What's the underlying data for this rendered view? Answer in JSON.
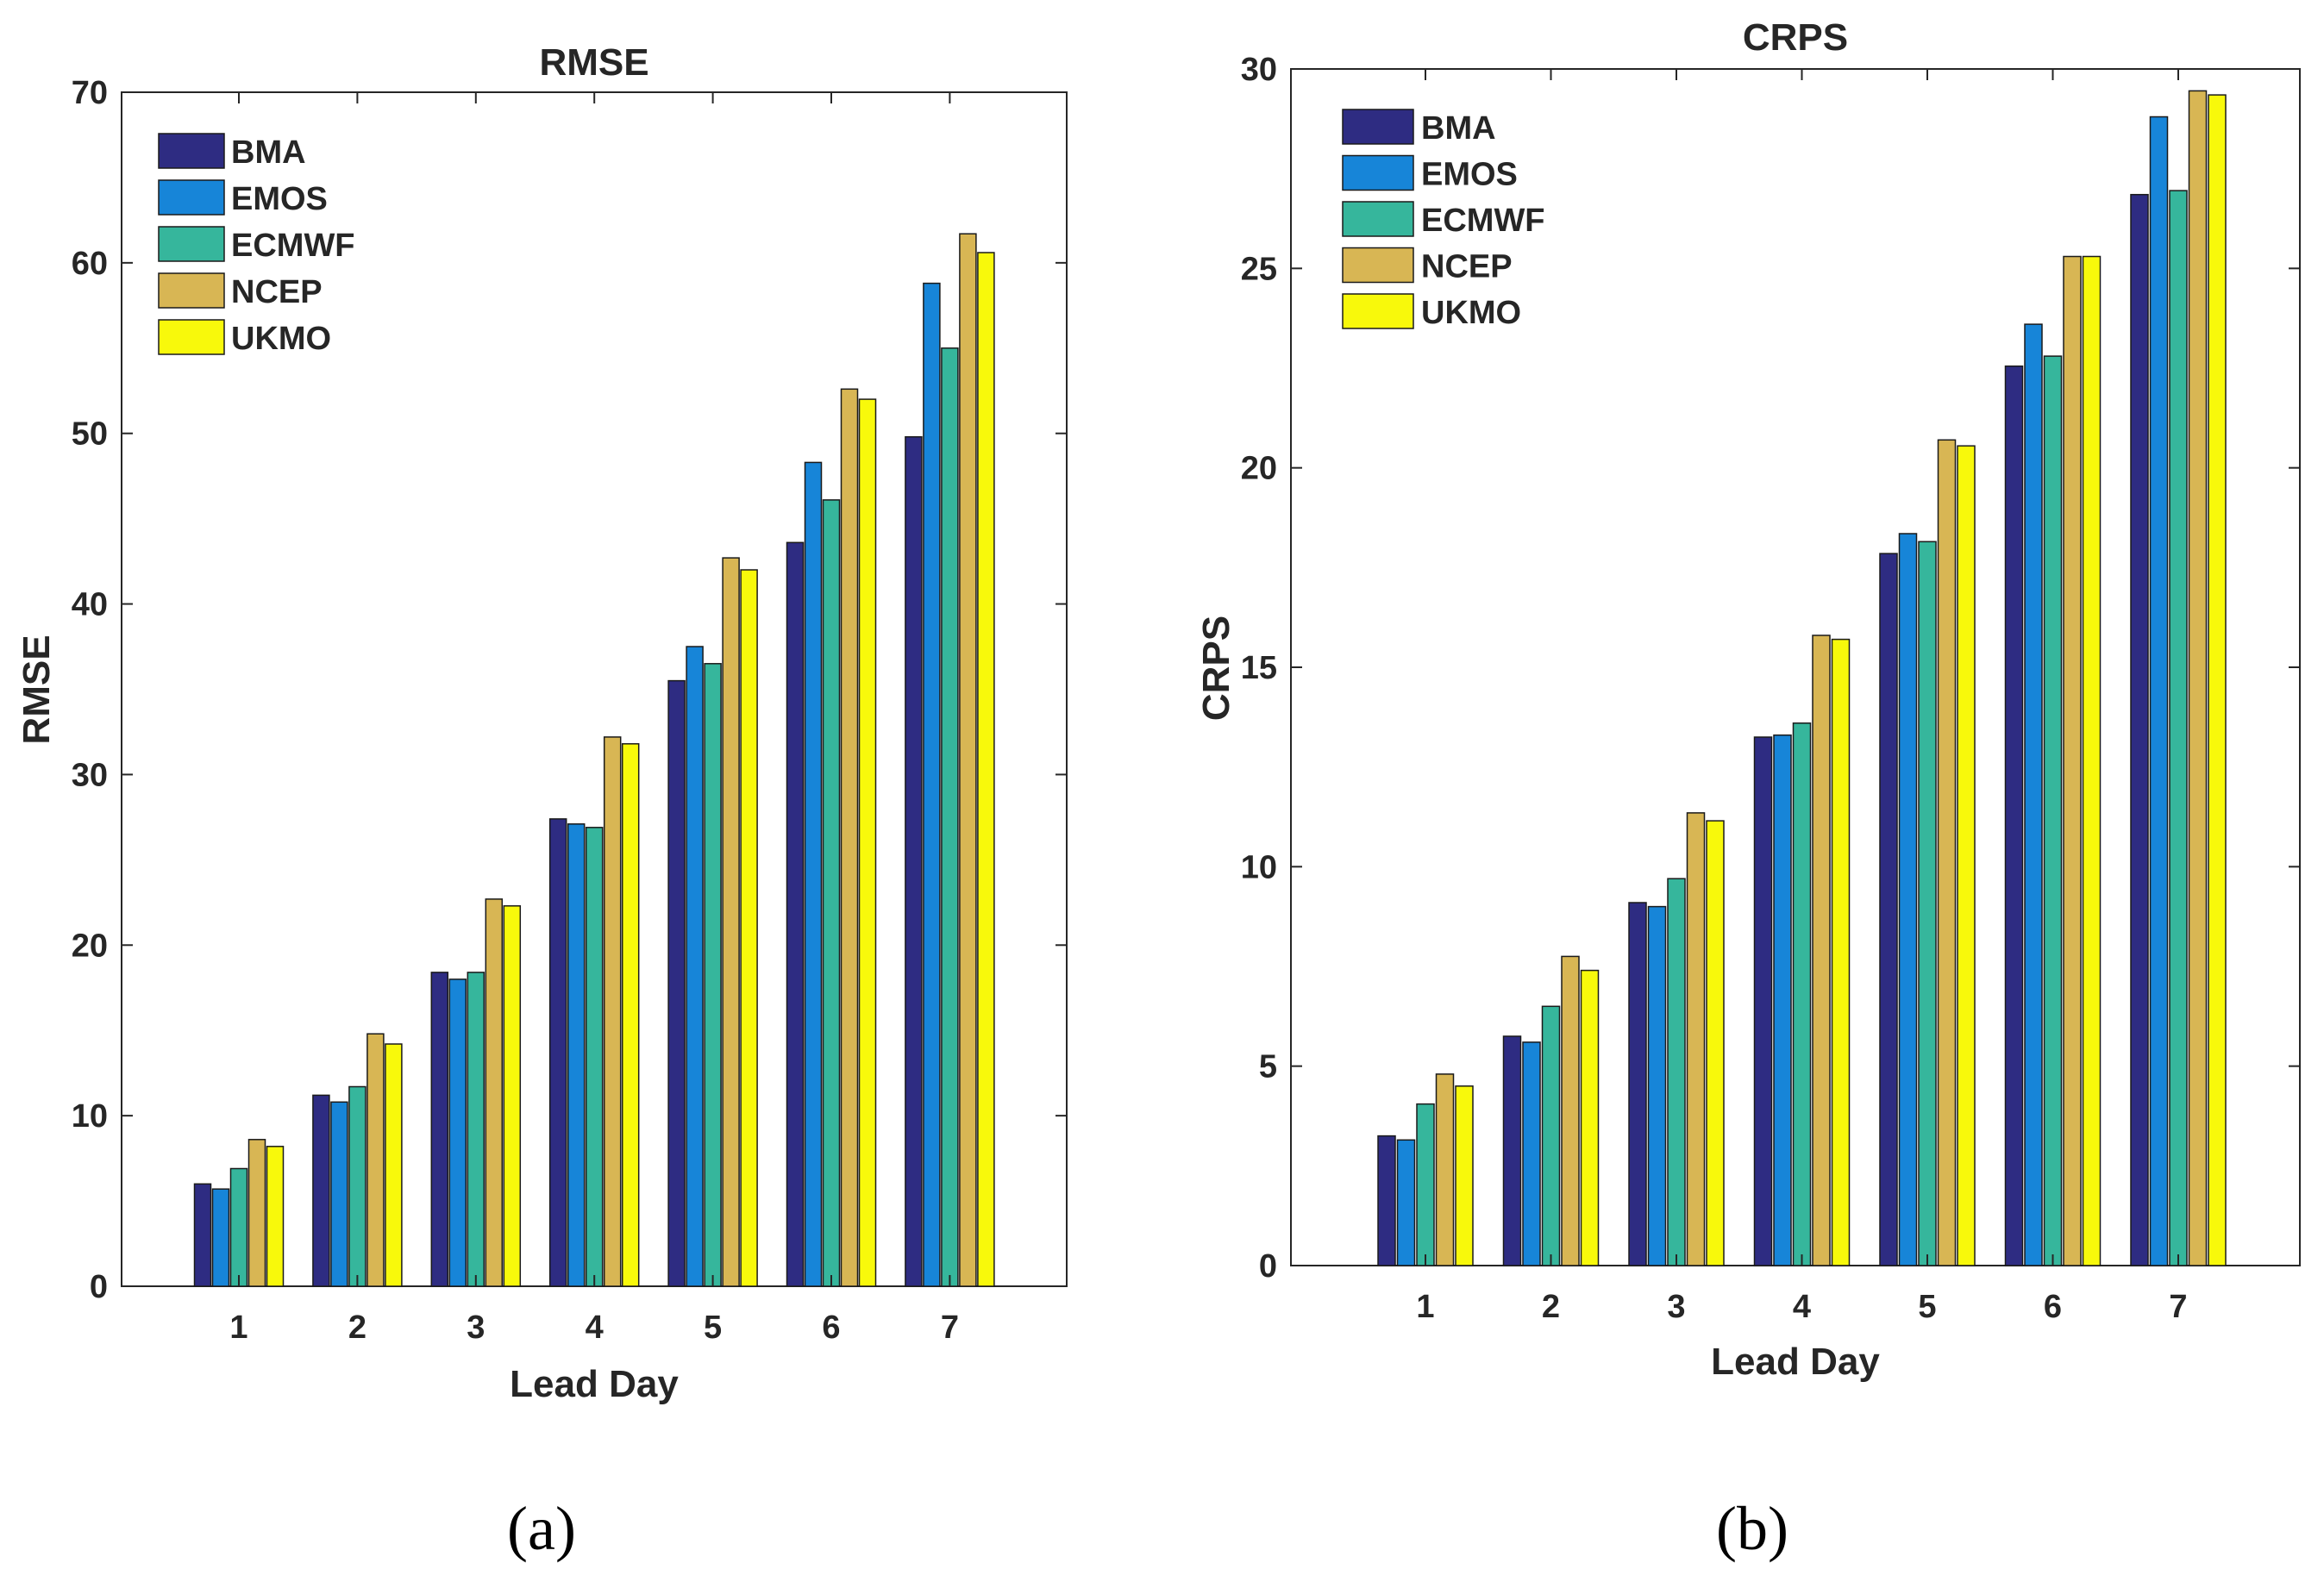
{
  "chart_data": [
    {
      "type": "bar",
      "panel_label": "(a)",
      "title": "RMSE",
      "xlabel": "Lead Day",
      "ylabel": "RMSE",
      "categories": [
        "1",
        "2",
        "3",
        "4",
        "5",
        "6",
        "7"
      ],
      "ylim": [
        0,
        70
      ],
      "yticks": [
        "0",
        "10",
        "20",
        "30",
        "40",
        "50",
        "60",
        "70"
      ],
      "legend_position": "top-left",
      "series": [
        {
          "name": "BMA",
          "values": [
            6.0,
            11.2,
            18.4,
            27.4,
            35.5,
            43.6,
            49.8
          ]
        },
        {
          "name": "EMOS",
          "values": [
            5.7,
            10.8,
            18.0,
            27.1,
            37.5,
            48.3,
            58.8
          ]
        },
        {
          "name": "ECMWF",
          "values": [
            6.9,
            11.7,
            18.4,
            26.9,
            36.5,
            46.1,
            55.0
          ]
        },
        {
          "name": "NCEP",
          "values": [
            8.6,
            14.8,
            22.7,
            32.2,
            42.7,
            52.6,
            61.7
          ]
        },
        {
          "name": "UKMO",
          "values": [
            8.2,
            14.2,
            22.3,
            31.8,
            42.0,
            52.0,
            60.6
          ]
        }
      ]
    },
    {
      "type": "bar",
      "panel_label": "(b)",
      "title": "CRPS",
      "xlabel": "Lead Day",
      "ylabel": "CRPS",
      "categories": [
        "1",
        "2",
        "3",
        "4",
        "5",
        "6",
        "7"
      ],
      "ylim": [
        0,
        30
      ],
      "yticks": [
        "0",
        "5",
        "10",
        "15",
        "20",
        "25",
        "30"
      ],
      "legend_position": "top-left",
      "series": [
        {
          "name": "BMA",
          "values": [
            3.25,
            5.75,
            9.1,
            13.25,
            17.85,
            22.55,
            26.85
          ]
        },
        {
          "name": "EMOS",
          "values": [
            3.15,
            5.6,
            9.0,
            13.3,
            18.35,
            23.6,
            28.8
          ]
        },
        {
          "name": "ECMWF",
          "values": [
            4.05,
            6.5,
            9.7,
            13.6,
            18.15,
            22.8,
            26.95
          ]
        },
        {
          "name": "NCEP",
          "values": [
            4.8,
            7.75,
            11.35,
            15.8,
            20.7,
            25.3,
            29.45
          ]
        },
        {
          "name": "UKMO",
          "values": [
            4.5,
            7.4,
            11.15,
            15.7,
            20.55,
            25.3,
            29.35
          ]
        }
      ]
    }
  ],
  "colors": {
    "BMA": "#2e2c82",
    "EMOS": "#1785d8",
    "ECMWF": "#36b69c",
    "NCEP": "#d8b654",
    "UKMO": "#f8f90b"
  }
}
